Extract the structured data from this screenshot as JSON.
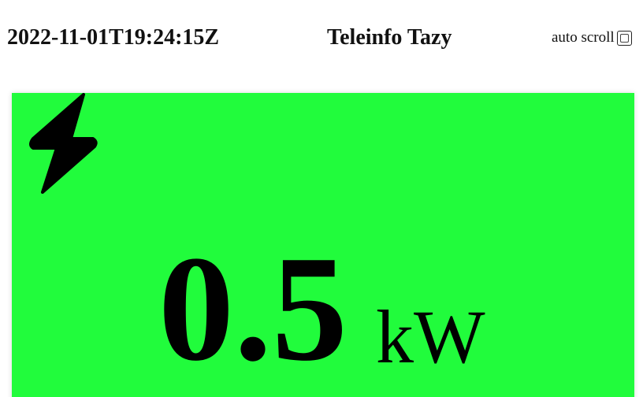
{
  "header": {
    "timestamp": "2022-11-01T19:24:15Z",
    "title": "Teleinfo Tazy",
    "auto_scroll_label": "auto scroll",
    "auto_scroll_checked": false
  },
  "power": {
    "icon": "lightning-bolt-icon",
    "value": "0.5",
    "unit": "kW",
    "background_color": "#21fc3c"
  }
}
